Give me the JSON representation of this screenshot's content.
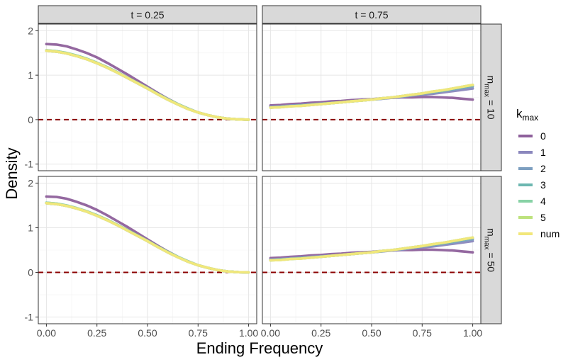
{
  "chart_data": {
    "type": "line",
    "xlabel": "Ending Frequency",
    "ylabel": "Density",
    "xlim": [
      -0.04,
      1.04
    ],
    "ylim": [
      -1.15,
      2.15
    ],
    "x_ticks": [
      0,
      0.25,
      0.5,
      0.75,
      1
    ],
    "x_tick_labels": [
      "0.00",
      "0.25",
      "0.50",
      "0.75",
      "1.00"
    ],
    "y_ticks": [
      -1,
      0,
      1,
      2
    ],
    "y_tick_labels": [
      "-1",
      "0",
      "1",
      "2"
    ],
    "grid": true,
    "reference_line": {
      "y": 0,
      "style": "dashed",
      "color": "#8b0000"
    },
    "col_facets": [
      "t = 0.25",
      "t = 0.75"
    ],
    "row_facets": [
      {
        "base": "m",
        "sub": "max",
        "rest": " = 10"
      },
      {
        "base": "m",
        "sub": "max",
        "rest": " = 50"
      }
    ],
    "legend": {
      "title_base": "k",
      "title_sub": "max",
      "position": "right",
      "entries": [
        {
          "label": "0",
          "color": "#8e609b"
        },
        {
          "label": "1",
          "color": "#8b87bd"
        },
        {
          "label": "2",
          "color": "#7d9fc0"
        },
        {
          "label": "3",
          "color": "#6cb7b0"
        },
        {
          "label": "4",
          "color": "#87d2a5"
        },
        {
          "label": "5",
          "color": "#bde27d"
        },
        {
          "label": "num",
          "color": "#f2e77a"
        }
      ]
    },
    "x": [
      0,
      0.05,
      0.1,
      0.15,
      0.2,
      0.25,
      0.3,
      0.35,
      0.4,
      0.45,
      0.5,
      0.55,
      0.6,
      0.65,
      0.7,
      0.75,
      0.8,
      0.85,
      0.9,
      0.95,
      1.0
    ],
    "panels": [
      {
        "col": 0,
        "row": 0,
        "series": [
          {
            "k": "0",
            "values": [
              1.7,
              1.69,
              1.65,
              1.58,
              1.5,
              1.4,
              1.28,
              1.15,
              1.02,
              0.88,
              0.74,
              0.6,
              0.47,
              0.35,
              0.25,
              0.16,
              0.1,
              0.05,
              0.02,
              0.005,
              0
            ]
          },
          {
            "k": "1",
            "values": [
              1.55,
              1.53,
              1.49,
              1.43,
              1.36,
              1.27,
              1.17,
              1.06,
              0.94,
              0.82,
              0.7,
              0.57,
              0.45,
              0.34,
              0.24,
              0.16,
              0.1,
              0.05,
              0.02,
              0.005,
              0
            ]
          },
          {
            "k": "2",
            "values": [
              1.56,
              1.54,
              1.5,
              1.44,
              1.37,
              1.28,
              1.18,
              1.07,
              0.95,
              0.83,
              0.71,
              0.58,
              0.46,
              0.35,
              0.25,
              0.16,
              0.1,
              0.05,
              0.02,
              0.005,
              0
            ]
          },
          {
            "k": "3",
            "values": [
              1.55,
              1.53,
              1.49,
              1.43,
              1.36,
              1.27,
              1.17,
              1.06,
              0.94,
              0.82,
              0.7,
              0.57,
              0.45,
              0.34,
              0.24,
              0.16,
              0.1,
              0.05,
              0.02,
              0.005,
              0
            ]
          },
          {
            "k": "4",
            "values": [
              1.56,
              1.54,
              1.5,
              1.44,
              1.37,
              1.28,
              1.18,
              1.07,
              0.95,
              0.83,
              0.71,
              0.58,
              0.46,
              0.35,
              0.25,
              0.16,
              0.1,
              0.05,
              0.02,
              0.005,
              0
            ]
          },
          {
            "k": "5",
            "values": [
              1.55,
              1.53,
              1.49,
              1.43,
              1.36,
              1.27,
              1.17,
              1.06,
              0.94,
              0.82,
              0.7,
              0.57,
              0.45,
              0.34,
              0.24,
              0.16,
              0.1,
              0.05,
              0.02,
              0.005,
              0
            ]
          },
          {
            "k": "num",
            "values": [
              1.55,
              1.53,
              1.49,
              1.43,
              1.36,
              1.27,
              1.17,
              1.06,
              0.94,
              0.82,
              0.7,
              0.57,
              0.45,
              0.34,
              0.24,
              0.16,
              0.1,
              0.05,
              0.02,
              0.005,
              0
            ]
          }
        ]
      },
      {
        "col": 1,
        "row": 0,
        "series": [
          {
            "k": "0",
            "values": [
              0.32,
              0.33,
              0.35,
              0.36,
              0.38,
              0.39,
              0.41,
              0.42,
              0.44,
              0.45,
              0.46,
              0.48,
              0.49,
              0.5,
              0.5,
              0.51,
              0.51,
              0.5,
              0.49,
              0.47,
              0.45
            ]
          },
          {
            "k": "1",
            "values": [
              0.29,
              0.3,
              0.32,
              0.33,
              0.35,
              0.36,
              0.38,
              0.39,
              0.41,
              0.43,
              0.45,
              0.47,
              0.49,
              0.51,
              0.54,
              0.56,
              0.58,
              0.61,
              0.64,
              0.67,
              0.7
            ]
          },
          {
            "k": "2",
            "values": [
              0.28,
              0.29,
              0.31,
              0.32,
              0.34,
              0.36,
              0.37,
              0.39,
              0.41,
              0.43,
              0.45,
              0.47,
              0.5,
              0.52,
              0.55,
              0.58,
              0.61,
              0.64,
              0.67,
              0.71,
              0.74
            ]
          },
          {
            "k": "3",
            "values": [
              0.27,
              0.29,
              0.3,
              0.32,
              0.33,
              0.35,
              0.37,
              0.39,
              0.41,
              0.43,
              0.45,
              0.48,
              0.5,
              0.53,
              0.56,
              0.59,
              0.62,
              0.65,
              0.69,
              0.73,
              0.77
            ]
          },
          {
            "k": "4",
            "values": [
              0.27,
              0.28,
              0.3,
              0.31,
              0.33,
              0.35,
              0.37,
              0.39,
              0.41,
              0.43,
              0.45,
              0.48,
              0.5,
              0.53,
              0.56,
              0.59,
              0.63,
              0.66,
              0.7,
              0.74,
              0.78
            ]
          },
          {
            "k": "5",
            "values": [
              0.27,
              0.28,
              0.3,
              0.31,
              0.33,
              0.35,
              0.37,
              0.39,
              0.41,
              0.43,
              0.45,
              0.48,
              0.5,
              0.53,
              0.56,
              0.59,
              0.63,
              0.66,
              0.7,
              0.74,
              0.78
            ]
          },
          {
            "k": "num",
            "values": [
              0.27,
              0.28,
              0.3,
              0.31,
              0.33,
              0.35,
              0.37,
              0.39,
              0.41,
              0.43,
              0.45,
              0.48,
              0.5,
              0.53,
              0.56,
              0.59,
              0.63,
              0.66,
              0.7,
              0.74,
              0.78
            ]
          }
        ]
      },
      {
        "col": 0,
        "row": 1,
        "series": [
          {
            "k": "0",
            "values": [
              1.7,
              1.69,
              1.65,
              1.58,
              1.5,
              1.4,
              1.28,
              1.15,
              1.02,
              0.88,
              0.74,
              0.6,
              0.47,
              0.35,
              0.25,
              0.16,
              0.1,
              0.05,
              0.02,
              0.005,
              0
            ]
          },
          {
            "k": "1",
            "values": [
              1.55,
              1.53,
              1.49,
              1.43,
              1.36,
              1.27,
              1.17,
              1.06,
              0.94,
              0.82,
              0.7,
              0.57,
              0.45,
              0.34,
              0.24,
              0.16,
              0.1,
              0.05,
              0.02,
              0.005,
              0
            ]
          },
          {
            "k": "2",
            "values": [
              1.56,
              1.54,
              1.5,
              1.44,
              1.37,
              1.28,
              1.18,
              1.07,
              0.95,
              0.83,
              0.71,
              0.58,
              0.46,
              0.35,
              0.25,
              0.16,
              0.1,
              0.05,
              0.02,
              0.005,
              0
            ]
          },
          {
            "k": "3",
            "values": [
              1.55,
              1.53,
              1.49,
              1.43,
              1.36,
              1.27,
              1.17,
              1.06,
              0.94,
              0.82,
              0.7,
              0.57,
              0.45,
              0.34,
              0.24,
              0.16,
              0.1,
              0.05,
              0.02,
              0.005,
              0
            ]
          },
          {
            "k": "4",
            "values": [
              1.56,
              1.54,
              1.5,
              1.44,
              1.37,
              1.28,
              1.18,
              1.07,
              0.95,
              0.83,
              0.71,
              0.58,
              0.46,
              0.35,
              0.25,
              0.16,
              0.1,
              0.05,
              0.02,
              0.005,
              0
            ]
          },
          {
            "k": "5",
            "values": [
              1.55,
              1.53,
              1.49,
              1.43,
              1.36,
              1.27,
              1.17,
              1.06,
              0.94,
              0.82,
              0.7,
              0.57,
              0.45,
              0.34,
              0.24,
              0.16,
              0.1,
              0.05,
              0.02,
              0.005,
              0
            ]
          },
          {
            "k": "num",
            "values": [
              1.55,
              1.53,
              1.49,
              1.43,
              1.36,
              1.27,
              1.17,
              1.06,
              0.94,
              0.82,
              0.7,
              0.57,
              0.45,
              0.34,
              0.24,
              0.16,
              0.1,
              0.05,
              0.02,
              0.005,
              0
            ]
          }
        ]
      },
      {
        "col": 1,
        "row": 1,
        "series": [
          {
            "k": "0",
            "values": [
              0.32,
              0.33,
              0.35,
              0.36,
              0.38,
              0.39,
              0.41,
              0.42,
              0.44,
              0.45,
              0.46,
              0.48,
              0.49,
              0.5,
              0.5,
              0.51,
              0.51,
              0.5,
              0.49,
              0.47,
              0.45
            ]
          },
          {
            "k": "1",
            "values": [
              0.29,
              0.3,
              0.32,
              0.33,
              0.35,
              0.36,
              0.38,
              0.39,
              0.41,
              0.43,
              0.45,
              0.47,
              0.49,
              0.51,
              0.54,
              0.56,
              0.58,
              0.61,
              0.64,
              0.67,
              0.7
            ]
          },
          {
            "k": "2",
            "values": [
              0.28,
              0.29,
              0.31,
              0.32,
              0.34,
              0.36,
              0.37,
              0.39,
              0.41,
              0.43,
              0.45,
              0.47,
              0.5,
              0.52,
              0.55,
              0.58,
              0.61,
              0.64,
              0.67,
              0.71,
              0.74
            ]
          },
          {
            "k": "3",
            "values": [
              0.27,
              0.29,
              0.3,
              0.32,
              0.33,
              0.35,
              0.37,
              0.39,
              0.41,
              0.43,
              0.45,
              0.48,
              0.5,
              0.53,
              0.56,
              0.59,
              0.62,
              0.65,
              0.69,
              0.73,
              0.77
            ]
          },
          {
            "k": "4",
            "values": [
              0.27,
              0.28,
              0.3,
              0.31,
              0.33,
              0.35,
              0.37,
              0.39,
              0.41,
              0.43,
              0.45,
              0.48,
              0.5,
              0.53,
              0.56,
              0.59,
              0.63,
              0.66,
              0.7,
              0.74,
              0.78
            ]
          },
          {
            "k": "5",
            "values": [
              0.27,
              0.28,
              0.3,
              0.31,
              0.33,
              0.35,
              0.37,
              0.39,
              0.41,
              0.43,
              0.45,
              0.48,
              0.5,
              0.53,
              0.56,
              0.59,
              0.63,
              0.66,
              0.7,
              0.74,
              0.78
            ]
          },
          {
            "k": "num",
            "values": [
              0.27,
              0.28,
              0.3,
              0.31,
              0.33,
              0.35,
              0.37,
              0.39,
              0.41,
              0.43,
              0.45,
              0.48,
              0.5,
              0.53,
              0.56,
              0.59,
              0.63,
              0.66,
              0.7,
              0.74,
              0.78
            ]
          }
        ]
      }
    ]
  }
}
